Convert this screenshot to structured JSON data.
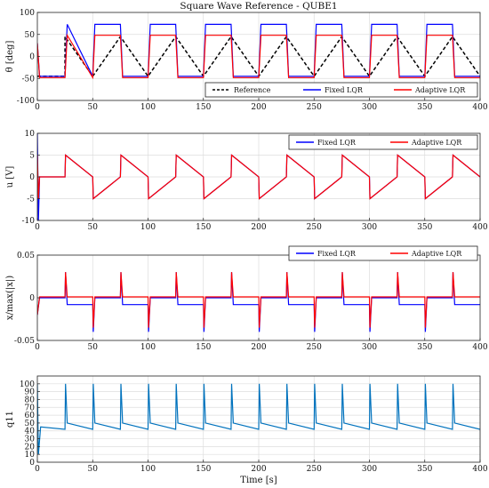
{
  "chart_data": [
    {
      "type": "line",
      "title": "Square Wave Reference - QUBE1",
      "ylabel": "θ [deg]",
      "xlabel": "",
      "xlim": [
        0,
        400
      ],
      "ylim": [
        -100,
        100
      ],
      "xticks": [
        0,
        50,
        100,
        150,
        200,
        250,
        300,
        350,
        400
      ],
      "yticks": [
        -100,
        -50,
        0,
        50,
        100
      ],
      "grid": true,
      "legend": "bottom-right",
      "series": [
        {
          "name": "Reference",
          "color": "#000000",
          "dash": "dashed",
          "x": [
            0,
            25,
            25,
            50,
            50,
            75,
            75,
            100,
            100,
            125,
            125,
            150,
            150,
            175,
            175,
            200,
            200,
            225,
            225,
            250,
            250,
            275,
            275,
            300,
            300,
            325,
            325,
            350,
            350,
            375,
            375,
            400
          ],
          "values": [
            -45,
            -45,
            45,
            -45,
            -45,
            45,
            45,
            -45,
            -45,
            45,
            45,
            -45,
            -45,
            45,
            45,
            -45,
            -45,
            45,
            45,
            -45,
            -45,
            45,
            45,
            -45,
            -45,
            45,
            45,
            -45,
            -45,
            45,
            45,
            -45
          ]
        },
        {
          "name": "Fixed LQR",
          "color": "#0000ff",
          "x": [
            0,
            2,
            25,
            27,
            50,
            52,
            75,
            77,
            100,
            102,
            125,
            127,
            150,
            152,
            175,
            177,
            200,
            202,
            225,
            227,
            250,
            252,
            275,
            277,
            300,
            302,
            325,
            327,
            350,
            352,
            375,
            377,
            400
          ],
          "values": [
            30,
            -45,
            -45,
            73,
            -45,
            73,
            73,
            -45,
            -45,
            73,
            73,
            -45,
            -45,
            73,
            73,
            -45,
            -45,
            73,
            73,
            -45,
            -45,
            73,
            73,
            -45,
            -45,
            73,
            73,
            -45,
            -45,
            73,
            73,
            -45,
            -45
          ]
        },
        {
          "name": "Adaptive LQR",
          "color": "#ff0000",
          "x": [
            0,
            2,
            25,
            27,
            50,
            52,
            75,
            77,
            100,
            102,
            125,
            127,
            150,
            152,
            175,
            177,
            200,
            202,
            225,
            227,
            250,
            252,
            275,
            277,
            300,
            302,
            325,
            327,
            350,
            352,
            375,
            377,
            400
          ],
          "values": [
            30,
            -48,
            -48,
            48,
            -48,
            48,
            48,
            -48,
            -48,
            48,
            48,
            -48,
            -48,
            48,
            48,
            -48,
            -48,
            48,
            48,
            -48,
            -48,
            48,
            48,
            -48,
            -48,
            48,
            48,
            -48,
            -48,
            48,
            48,
            -48,
            -48
          ]
        }
      ]
    },
    {
      "type": "line",
      "title": "",
      "ylabel": "u [V]",
      "xlabel": "",
      "xlim": [
        0,
        400
      ],
      "ylim": [
        -10,
        10
      ],
      "xticks": [
        0,
        50,
        100,
        150,
        200,
        250,
        300,
        350,
        400
      ],
      "yticks": [
        -10,
        -5,
        0,
        5,
        10
      ],
      "grid": true,
      "legend": "top-right",
      "series": [
        {
          "name": "Fixed LQR",
          "color": "#0000ff",
          "x": [
            0,
            1,
            2,
            25,
            25.5,
            50,
            50.5,
            75,
            75.5,
            100,
            100.5,
            125,
            125.5,
            150,
            150.5,
            175,
            175.5,
            200,
            200.5,
            225,
            225.5,
            250,
            250.5,
            275,
            275.5,
            300,
            300.5,
            325,
            325.5,
            350,
            350.5,
            375,
            375.5,
            400
          ],
          "values": [
            10,
            -10,
            0,
            0,
            5,
            0,
            -5,
            0,
            5,
            0,
            -5,
            0,
            5,
            0,
            -5,
            0,
            5,
            0,
            -5,
            0,
            5,
            0,
            -5,
            0,
            5,
            0,
            -5,
            0,
            5,
            0,
            -5,
            0,
            5,
            0
          ]
        },
        {
          "name": "Adaptive LQR",
          "color": "#ff0000",
          "x": [
            0,
            1,
            2,
            25,
            25.5,
            50,
            50.5,
            75,
            75.5,
            100,
            100.5,
            125,
            125.5,
            150,
            150.5,
            175,
            175.5,
            200,
            200.5,
            225,
            225.5,
            250,
            250.5,
            275,
            275.5,
            300,
            300.5,
            325,
            325.5,
            350,
            350.5,
            375,
            375.5,
            400
          ],
          "values": [
            5,
            -5,
            0,
            0,
            5,
            0,
            -5,
            0,
            5,
            0,
            -5,
            0,
            5,
            0,
            -5,
            0,
            5,
            0,
            -5,
            0,
            5,
            0,
            -5,
            0,
            5,
            0,
            -5,
            0,
            5,
            0,
            -5,
            0,
            5,
            0
          ]
        }
      ]
    },
    {
      "type": "line",
      "title": "",
      "ylabel": "x/max(|x|)",
      "xlabel": "",
      "xlim": [
        0,
        400
      ],
      "ylim": [
        -0.05,
        0.05
      ],
      "xticks": [
        0,
        50,
        100,
        150,
        200,
        250,
        300,
        350,
        400
      ],
      "yticks": [
        -0.05,
        0,
        0.05
      ],
      "ytick_labels": [
        "-0.05",
        "0",
        "0.05"
      ],
      "grid": true,
      "legend": "top-right",
      "series": [
        {
          "name": "Fixed LQR",
          "color": "#0000ff",
          "x": [
            0,
            2,
            25,
            25.5,
            27,
            50,
            50.5,
            52,
            75,
            75.5,
            77,
            100,
            100.5,
            102,
            125,
            125.5,
            127,
            150,
            150.5,
            152,
            175,
            175.5,
            177,
            200,
            200.5,
            202,
            225,
            225.5,
            227,
            250,
            250.5,
            252,
            275,
            275.5,
            277,
            300,
            300.5,
            302,
            325,
            325.5,
            327,
            350,
            350.5,
            352,
            375,
            375.5,
            377,
            400
          ],
          "values": [
            -0.02,
            0,
            0,
            0.03,
            -0.008,
            -0.008,
            -0.04,
            0,
            0,
            0.03,
            -0.008,
            -0.008,
            -0.04,
            0,
            0,
            0.03,
            -0.008,
            -0.008,
            -0.04,
            0,
            0,
            0.03,
            -0.008,
            -0.008,
            -0.04,
            0,
            0,
            0.03,
            -0.008,
            -0.008,
            -0.04,
            0,
            0,
            0.03,
            -0.008,
            -0.008,
            -0.04,
            0,
            0,
            0.03,
            -0.008,
            -0.008,
            -0.04,
            0,
            0,
            0.03,
            -0.008,
            -0.008
          ]
        },
        {
          "name": "Adaptive LQR",
          "color": "#ff0000",
          "x": [
            0,
            2,
            25,
            25.5,
            27,
            50,
            50.5,
            52,
            75,
            75.5,
            77,
            100,
            100.5,
            102,
            125,
            125.5,
            127,
            150,
            150.5,
            152,
            175,
            175.5,
            177,
            200,
            200.5,
            202,
            225,
            225.5,
            227,
            250,
            250.5,
            252,
            275,
            275.5,
            277,
            300,
            300.5,
            302,
            325,
            325.5,
            327,
            350,
            350.5,
            352,
            375,
            375.5,
            377,
            400
          ],
          "values": [
            -0.02,
            0.001,
            0.001,
            0.03,
            0.001,
            0.001,
            -0.035,
            0.001,
            0.001,
            0.03,
            0.001,
            0.001,
            -0.035,
            0.001,
            0.001,
            0.03,
            0.001,
            0.001,
            -0.035,
            0.001,
            0.001,
            0.03,
            0.001,
            0.001,
            -0.035,
            0.001,
            0.001,
            0.03,
            0.001,
            0.001,
            -0.035,
            0.001,
            0.001,
            0.03,
            0.001,
            0.001,
            -0.035,
            0.001,
            0.001,
            0.03,
            0.001,
            0.001,
            -0.035,
            0.001,
            0.001,
            0.03,
            0.001,
            0.001
          ]
        }
      ]
    },
    {
      "type": "line",
      "title": "",
      "ylabel": "q11",
      "xlabel": "Time [s]",
      "xlim": [
        0,
        400
      ],
      "ylim": [
        0,
        110
      ],
      "xticks": [
        0,
        50,
        100,
        150,
        200,
        250,
        300,
        350,
        400
      ],
      "yticks": [
        0,
        10,
        20,
        30,
        40,
        50,
        60,
        70,
        80,
        90,
        100
      ],
      "grid": true,
      "series": [
        {
          "name": "",
          "color": "#0072bd",
          "x": [
            0,
            1,
            3,
            25,
            25.5,
            27,
            50,
            50.5,
            52,
            75,
            75.5,
            77,
            100,
            100.5,
            102,
            125,
            125.5,
            127,
            150,
            150.5,
            152,
            175,
            175.5,
            177,
            200,
            200.5,
            202,
            225,
            225.5,
            227,
            250,
            250.5,
            252,
            275,
            275.5,
            277,
            300,
            300.5,
            302,
            325,
            325.5,
            327,
            350,
            350.5,
            352,
            375,
            375.5,
            377,
            400
          ],
          "values": [
            100,
            10,
            45,
            42,
            100,
            50,
            42,
            100,
            50,
            42,
            100,
            50,
            42,
            100,
            50,
            42,
            100,
            50,
            42,
            100,
            50,
            42,
            100,
            50,
            42,
            100,
            50,
            42,
            100,
            50,
            42,
            100,
            50,
            42,
            100,
            50,
            42,
            100,
            50,
            42,
            100,
            50,
            42,
            100,
            50,
            42,
            100,
            50,
            42
          ]
        }
      ]
    }
  ]
}
